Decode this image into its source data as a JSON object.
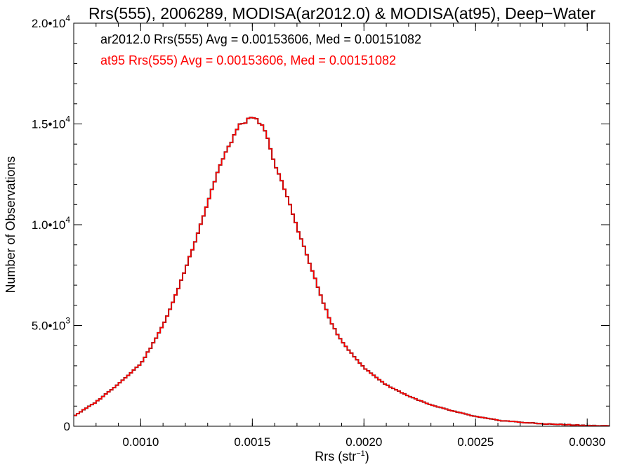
{
  "chart_data": {
    "type": "line",
    "title": "Rrs(555), 2006289, MODISA(ar2012.0) & MODISA(at95), Deep−Water",
    "xlabel_base": "Rrs (str",
    "xlabel_sup": "−1",
    "xlabel_close": ")",
    "ylabel": "Number of Observations",
    "xlim": [
      0.0007,
      0.0031
    ],
    "ylim": [
      0,
      20000
    ],
    "x_ticks": [
      {
        "value": 0.001,
        "label": "0.0010"
      },
      {
        "value": 0.0015,
        "label": "0.0015"
      },
      {
        "value": 0.002,
        "label": "0.0020"
      },
      {
        "value": 0.0025,
        "label": "0.0025"
      },
      {
        "value": 0.003,
        "label": "0.0030"
      }
    ],
    "y_ticks": [
      {
        "value": 0,
        "mant": "0",
        "exp": ""
      },
      {
        "value": 5000,
        "mant": "5.0•10",
        "exp": "3"
      },
      {
        "value": 10000,
        "mant": "1.0•10",
        "exp": "4"
      },
      {
        "value": 15000,
        "mant": "1.5•10",
        "exp": "4"
      },
      {
        "value": 20000,
        "mant": "2.0•10",
        "exp": "4"
      }
    ],
    "x_minor_step": 0.0001,
    "y_minor_step": 1000,
    "annotations": [
      {
        "text": "ar2012.0 Rrs(555) Avg = 0.00153606, Med = 0.00151082",
        "color": "#000000"
      },
      {
        "text": "at95 Rrs(555) Avg = 0.00153606, Med = 0.00151082",
        "color": "#ff0000"
      }
    ],
    "series": [
      {
        "name": "ar2012.0",
        "color": "#000000",
        "x": [
          0.0007,
          0.0008,
          0.0009,
          0.001,
          0.00105,
          0.0011,
          0.00115,
          0.0012,
          0.00125,
          0.0013,
          0.00135,
          0.0014,
          0.00143,
          0.00145,
          0.00148,
          0.0015,
          0.00152,
          0.00155,
          0.00158,
          0.0016,
          0.00165,
          0.0017,
          0.00175,
          0.0018,
          0.00185,
          0.0019,
          0.002,
          0.0021,
          0.0022,
          0.0023,
          0.0024,
          0.0025,
          0.0026,
          0.0027,
          0.0028,
          0.0029,
          0.003,
          0.0031
        ],
        "y": [
          500,
          1200,
          2100,
          3100,
          4000,
          5000,
          6300,
          7800,
          9400,
          11100,
          12800,
          14000,
          14700,
          15000,
          15200,
          15250,
          15200,
          14800,
          13900,
          13000,
          11600,
          9900,
          8300,
          6700,
          5200,
          4200,
          2900,
          2050,
          1500,
          1050,
          750,
          480,
          300,
          200,
          120,
          80,
          40,
          10
        ]
      },
      {
        "name": "at95",
        "color": "#ff0000",
        "x": [
          0.0007,
          0.0008,
          0.0009,
          0.001,
          0.00105,
          0.0011,
          0.00115,
          0.0012,
          0.00125,
          0.0013,
          0.00135,
          0.0014,
          0.00143,
          0.00145,
          0.00148,
          0.0015,
          0.00152,
          0.00155,
          0.00158,
          0.0016,
          0.00165,
          0.0017,
          0.00175,
          0.0018,
          0.00185,
          0.0019,
          0.002,
          0.0021,
          0.0022,
          0.0023,
          0.0024,
          0.0025,
          0.0026,
          0.0027,
          0.0028,
          0.0029,
          0.003,
          0.0031
        ],
        "y": [
          500,
          1200,
          2100,
          3100,
          4000,
          5000,
          6300,
          7800,
          9400,
          11100,
          12800,
          14000,
          14700,
          15000,
          15200,
          15250,
          15200,
          14800,
          13900,
          13000,
          11600,
          9900,
          8300,
          6700,
          5200,
          4200,
          2900,
          2050,
          1500,
          1050,
          750,
          480,
          300,
          200,
          120,
          80,
          40,
          10
        ]
      }
    ]
  }
}
